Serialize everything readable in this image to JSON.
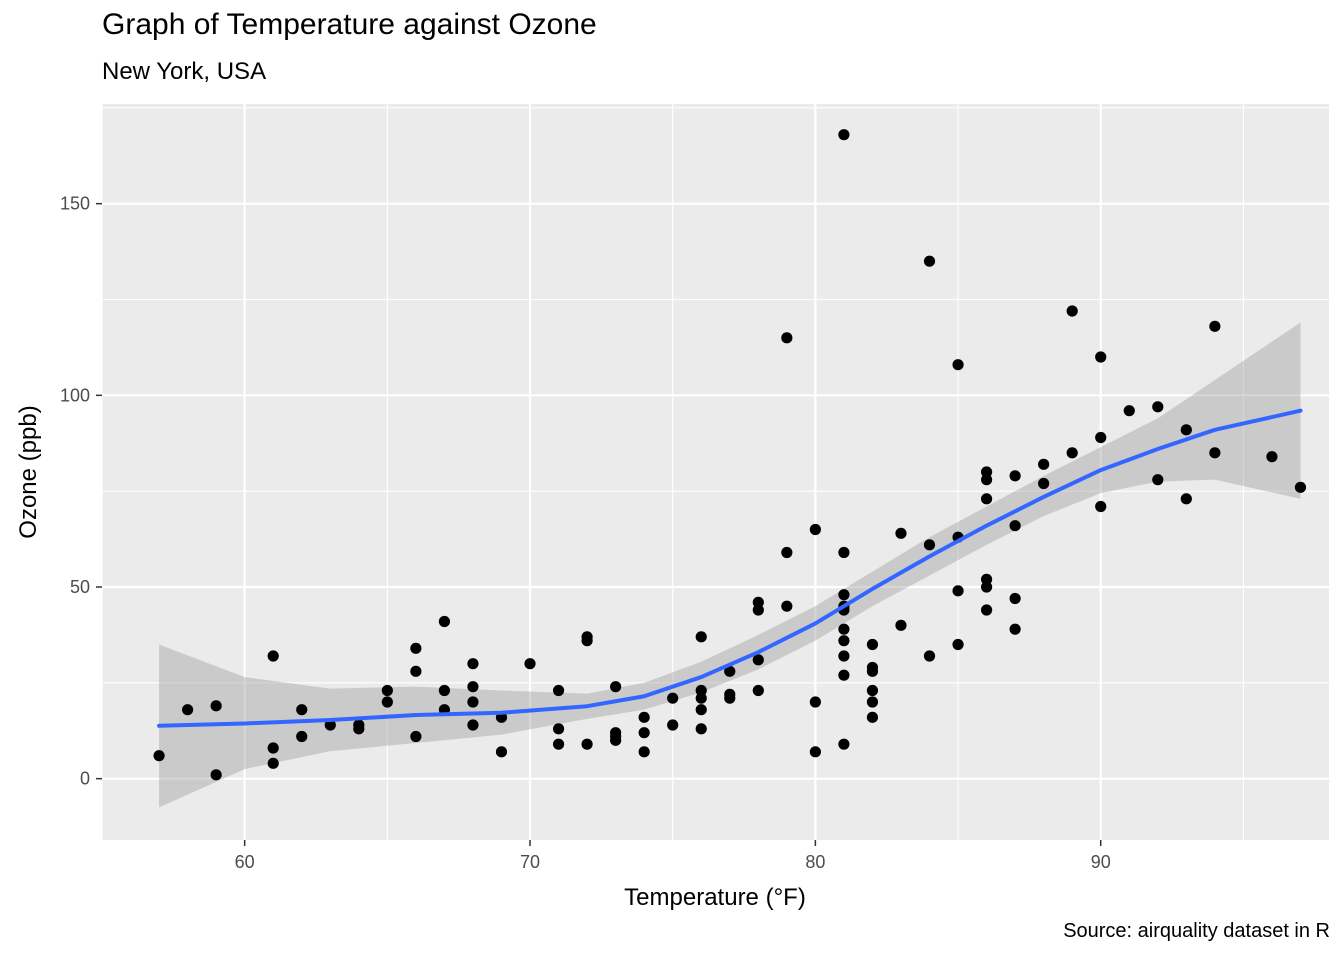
{
  "chart_data": {
    "type": "scatter",
    "title": "Graph of Temperature against Ozone",
    "subtitle": "New York, USA",
    "caption": "Source: airquality dataset in R",
    "xlabel": "Temperature (°F)",
    "ylabel": "Ozone (ppb)",
    "xlim": [
      55,
      98
    ],
    "ylim": [
      -16,
      176
    ],
    "x_ticks": [
      60,
      70,
      80,
      90
    ],
    "y_ticks": [
      0,
      50,
      100,
      150
    ],
    "grid": true,
    "points": [
      [
        57,
        6
      ],
      [
        58,
        18
      ],
      [
        59,
        19
      ],
      [
        59,
        1
      ],
      [
        61,
        32
      ],
      [
        61,
        8
      ],
      [
        61,
        4
      ],
      [
        62,
        18
      ],
      [
        62,
        11
      ],
      [
        63,
        14
      ],
      [
        64,
        14
      ],
      [
        64,
        13
      ],
      [
        65,
        23
      ],
      [
        65,
        20
      ],
      [
        66,
        34
      ],
      [
        66,
        28
      ],
      [
        66,
        11
      ],
      [
        67,
        41
      ],
      [
        67,
        23
      ],
      [
        67,
        18
      ],
      [
        68,
        30
      ],
      [
        68,
        24
      ],
      [
        68,
        20
      ],
      [
        68,
        14
      ],
      [
        69,
        16
      ],
      [
        69,
        7
      ],
      [
        70,
        30
      ],
      [
        71,
        23
      ],
      [
        71,
        13
      ],
      [
        71,
        9
      ],
      [
        72,
        37
      ],
      [
        72,
        36
      ],
      [
        72,
        9
      ],
      [
        73,
        24
      ],
      [
        73,
        12
      ],
      [
        73,
        11
      ],
      [
        73,
        10
      ],
      [
        74,
        16
      ],
      [
        74,
        12
      ],
      [
        74,
        7
      ],
      [
        75,
        21
      ],
      [
        75,
        14
      ],
      [
        76,
        37
      ],
      [
        76,
        23
      ],
      [
        76,
        21
      ],
      [
        76,
        18
      ],
      [
        76,
        13
      ],
      [
        77,
        28
      ],
      [
        77,
        22
      ],
      [
        77,
        21
      ],
      [
        78,
        46
      ],
      [
        78,
        44
      ],
      [
        78,
        31
      ],
      [
        78,
        23
      ],
      [
        79,
        115
      ],
      [
        79,
        59
      ],
      [
        79,
        45
      ],
      [
        80,
        65
      ],
      [
        80,
        20
      ],
      [
        80,
        7
      ],
      [
        81,
        168
      ],
      [
        81,
        59
      ],
      [
        81,
        48
      ],
      [
        81,
        45
      ],
      [
        81,
        44
      ],
      [
        81,
        39
      ],
      [
        81,
        36
      ],
      [
        81,
        32
      ],
      [
        81,
        27
      ],
      [
        81,
        9
      ],
      [
        82,
        35
      ],
      [
        82,
        29
      ],
      [
        82,
        28
      ],
      [
        82,
        23
      ],
      [
        82,
        20
      ],
      [
        82,
        16
      ],
      [
        83,
        64
      ],
      [
        83,
        40
      ],
      [
        84,
        135
      ],
      [
        84,
        61
      ],
      [
        84,
        32
      ],
      [
        85,
        108
      ],
      [
        85,
        63
      ],
      [
        85,
        49
      ],
      [
        85,
        35
      ],
      [
        86,
        80
      ],
      [
        86,
        78
      ],
      [
        86,
        73
      ],
      [
        86,
        52
      ],
      [
        86,
        50
      ],
      [
        86,
        44
      ],
      [
        87,
        79
      ],
      [
        87,
        66
      ],
      [
        87,
        47
      ],
      [
        87,
        39
      ],
      [
        88,
        82
      ],
      [
        88,
        77
      ],
      [
        89,
        122
      ],
      [
        89,
        85
      ],
      [
        90,
        110
      ],
      [
        90,
        89
      ],
      [
        90,
        71
      ],
      [
        91,
        96
      ],
      [
        92,
        97
      ],
      [
        92,
        78
      ],
      [
        93,
        91
      ],
      [
        93,
        73
      ],
      [
        94,
        118
      ],
      [
        94,
        85
      ],
      [
        96,
        84
      ],
      [
        97,
        76
      ]
    ],
    "smooth": {
      "method": "loess",
      "color": "#3366FF",
      "fit": [
        [
          57,
          13.8
        ],
        [
          60,
          14.4
        ],
        [
          63,
          15.3
        ],
        [
          66,
          16.6
        ],
        [
          69,
          17.2
        ],
        [
          72,
          18.9
        ],
        [
          74,
          21.5
        ],
        [
          76,
          26.5
        ],
        [
          78,
          33.0
        ],
        [
          80,
          40.5
        ],
        [
          82,
          49.5
        ],
        [
          84,
          58.0
        ],
        [
          86,
          66.0
        ],
        [
          88,
          73.5
        ],
        [
          90,
          80.5
        ],
        [
          92,
          86.0
        ],
        [
          94,
          91.0
        ],
        [
          97,
          96.0
        ]
      ],
      "upper": [
        [
          57,
          35
        ],
        [
          60,
          26.5
        ],
        [
          63,
          23.5
        ],
        [
          66,
          24
        ],
        [
          69,
          23
        ],
        [
          72,
          22.2
        ],
        [
          74,
          25
        ],
        [
          76,
          30.5
        ],
        [
          78,
          37.5
        ],
        [
          80,
          45
        ],
        [
          82,
          54
        ],
        [
          84,
          63
        ],
        [
          86,
          71
        ],
        [
          88,
          79
        ],
        [
          90,
          86.5
        ],
        [
          92,
          94
        ],
        [
          94,
          104
        ],
        [
          97,
          119
        ]
      ],
      "lower": [
        [
          57,
          -7.5
        ],
        [
          60,
          2.5
        ],
        [
          63,
          7.2
        ],
        [
          66,
          9.3
        ],
        [
          69,
          11.5
        ],
        [
          72,
          15.6
        ],
        [
          74,
          18
        ],
        [
          76,
          22.5
        ],
        [
          78,
          28.5
        ],
        [
          80,
          36
        ],
        [
          82,
          45
        ],
        [
          84,
          53
        ],
        [
          86,
          61
        ],
        [
          88,
          68.5
        ],
        [
          90,
          74.5
        ],
        [
          92,
          77.5
        ],
        [
          94,
          78
        ],
        [
          97,
          73
        ]
      ]
    },
    "colors": {
      "panel": "#EBEBEB",
      "grid": "#FFFFFF",
      "point": "#000000",
      "ribbon": "#999999",
      "line": "#3366FF",
      "axis_text": "#4D4D4D"
    }
  }
}
